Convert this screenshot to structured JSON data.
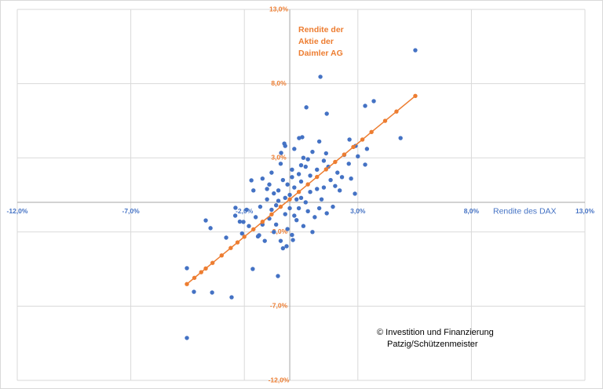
{
  "chart_data": {
    "type": "scatter",
    "x_label": "Rendite des DAX",
    "y_label_lines": [
      "Rendite der",
      "Aktie der",
      "Daimler AG"
    ],
    "annotation_lines": [
      "© Investition und Finanzierung",
      "Patzig/Schützenmeister"
    ],
    "xlim": [
      -12,
      13
    ],
    "ylim": [
      -12,
      13
    ],
    "xticks": [
      {
        "value": -12,
        "label": "-12,0%"
      },
      {
        "value": -7,
        "label": "-7,0%"
      },
      {
        "value": -2,
        "label": "-2,0%"
      },
      {
        "value": 3,
        "label": "3,0%"
      },
      {
        "value": 8,
        "label": "8,0%"
      },
      {
        "value": 13,
        "label": "13,0%"
      }
    ],
    "yticks": [
      {
        "value": 13,
        "label": "13,0%"
      },
      {
        "value": 8,
        "label": "8,0%"
      },
      {
        "value": 3,
        "label": "3,0%"
      },
      {
        "value": -2,
        "label": "-2,0%"
      },
      {
        "value": -7,
        "label": "-7,0%"
      },
      {
        "value": -12,
        "label": "-12,0%"
      }
    ],
    "grid": true,
    "series": [
      {
        "color": "#4472c4",
        "line": false,
        "x": [
          5.53,
          1.35,
          -4.53,
          -4.53,
          -4.22,
          -3.42,
          -2.56,
          -3.7,
          -3.49,
          -2.8,
          -1.63,
          -0.52,
          4.88,
          3.7,
          3.32,
          1.63,
          0.73,
          2.87,
          3.32,
          0.41,
          0.55,
          -0.24,
          -0.38,
          2.63,
          -1.69,
          -2.39,
          -2.04,
          -1.35,
          0.14,
          -0.14,
          1.63,
          -0.5,
          -0.3,
          0.2,
          0.5,
          -0.8,
          -1.0,
          0.9,
          1.2,
          -0.2,
          0.3,
          -0.6,
          0.7,
          1.5,
          1.8,
          -1.3,
          -1.5,
          0.1,
          -0.4,
          0.6,
          1.0,
          -0.9,
          -1.2,
          0.0,
          0.4,
          -0.1,
          0.8,
          1.4,
          2.1,
          2.4,
          2.6,
          -0.7,
          -1.8,
          -2.1,
          1.1,
          1.9,
          2.2,
          0.2,
          -0.2,
          1.3,
          1.6,
          2.9,
          3.0,
          -1.1,
          -0.3,
          0.1,
          -2.4,
          -1.6,
          0.5,
          -0.5,
          0.3,
          0.9,
          -0.8,
          1.7,
          2.0,
          -1.4,
          -0.9,
          0.6,
          0.0,
          -0.6,
          1.2,
          0.4,
          -0.1,
          2.7,
          3.4,
          -1.9,
          -2.2,
          0.7,
          1.0,
          -0.4,
          1.5,
          0.2,
          -1.0,
          -0.2,
          0.8,
          1.3,
          2.3,
          -1.2,
          0.5,
          -0.7,
          0.1
        ],
        "values": [
          10.25,
          8.46,
          -9.14,
          -4.44,
          -6.03,
          -6.08,
          -6.4,
          -1.22,
          -1.74,
          -2.38,
          -4.49,
          -4.97,
          4.33,
          6.82,
          6.5,
          5.97,
          6.4,
          0.58,
          2.54,
          4.33,
          4.39,
          3.96,
          3.33,
          4.23,
          1.48,
          -0.37,
          -1.32,
          -2.22,
          -2.54,
          -2.96,
          -0.74,
          0.8,
          1.5,
          1.0,
          0.3,
          -0.5,
          0.2,
          1.8,
          0.9,
          -0.8,
          -1.2,
          -1.5,
          2.4,
          2.8,
          1.5,
          -0.3,
          -1.0,
          2.2,
          2.6,
          3.0,
          3.4,
          1.2,
          1.6,
          0.5,
          -0.4,
          -1.8,
          -0.6,
          0.2,
          2.0,
          3.2,
          2.6,
          -2.0,
          -1.6,
          -2.1,
          -1.0,
          -0.3,
          0.8,
          3.6,
          3.8,
          4.1,
          3.3,
          3.8,
          3.1,
          -2.6,
          -3.1,
          -2.2,
          -0.9,
          0.8,
          1.4,
          0.1,
          0.2,
          0.7,
          2.0,
          2.4,
          1.1,
          -2.3,
          -1.1,
          -1.6,
          -0.4,
          -0.2,
          2.2,
          1.9,
          1.2,
          1.6,
          3.6,
          -0.5,
          -1.3,
          0.0,
          -2.0,
          -2.6,
          1.0,
          -0.9,
          0.9,
          0.3,
          2.9,
          -0.4,
          1.7,
          -1.5,
          2.5,
          0.6,
          1.7
        ]
      },
      {
        "color": "#ed7d31",
        "line": true,
        "x": [
          -4.53,
          -4.2,
          -3.9,
          -3.7,
          -3.4,
          -3.0,
          -2.6,
          -2.3,
          -2.0,
          -1.6,
          -1.2,
          -0.8,
          -0.4,
          0,
          0.4,
          0.8,
          1.2,
          1.6,
          2.0,
          2.4,
          2.8,
          3.2,
          3.6,
          4.2,
          4.7,
          5.53
        ],
        "values": [
          -5.51,
          -5.09,
          -4.71,
          -4.46,
          -4.08,
          -3.58,
          -3.08,
          -2.7,
          -2.32,
          -1.82,
          -1.31,
          -0.81,
          -0.3,
          0.2,
          0.7,
          1.21,
          1.71,
          2.22,
          2.72,
          3.22,
          3.73,
          4.23,
          4.74,
          5.49,
          6.12,
          7.17
        ]
      }
    ]
  }
}
